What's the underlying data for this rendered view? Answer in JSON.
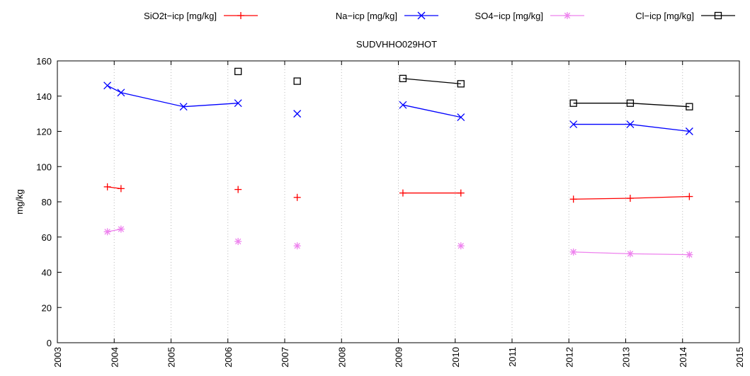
{
  "chart_data": {
    "type": "line",
    "title": "SUDVHHO029HOT",
    "xlabel": "",
    "ylabel": "mg/kg",
    "xlim": [
      2003,
      2015
    ],
    "ylim": [
      0,
      160
    ],
    "x_ticks": [
      "2003",
      "2004",
      "2005",
      "2006",
      "2007",
      "2008",
      "2009",
      "2010",
      "2011",
      "2012",
      "2013",
      "2014",
      "2015"
    ],
    "y_ticks": [
      "0",
      "20",
      "40",
      "60",
      "80",
      "100",
      "120",
      "140",
      "160"
    ],
    "grid": "vertical dotted at each year",
    "legend_position": "top",
    "series": [
      {
        "name": "SiO2t−icp [mg/kg]",
        "color": "#ff0000",
        "marker": "plus",
        "segments": [
          [
            [
              2003.88,
              88.5
            ],
            [
              2004.12,
              87.5
            ]
          ],
          [
            [
              2006.18,
              87
            ]
          ],
          [
            [
              2007.22,
              82.5
            ]
          ],
          [
            [
              2009.08,
              85
            ],
            [
              2010.1,
              85
            ]
          ],
          [
            [
              2012.08,
              81.5
            ],
            [
              2013.08,
              82
            ],
            [
              2014.12,
              83
            ]
          ]
        ]
      },
      {
        "name": "Na−icp [mg/kg]",
        "color": "#0000ff",
        "marker": "x",
        "segments": [
          [
            [
              2003.88,
              146
            ],
            [
              2004.12,
              142
            ],
            [
              2005.22,
              134
            ],
            [
              2006.18,
              136
            ]
          ],
          [
            [
              2007.22,
              130
            ]
          ],
          [
            [
              2009.08,
              135
            ],
            [
              2010.1,
              128
            ]
          ],
          [
            [
              2012.08,
              124
            ],
            [
              2013.08,
              124
            ],
            [
              2014.12,
              120
            ]
          ]
        ]
      },
      {
        "name": "SO4−icp [mg/kg]",
        "color": "#ee82ee",
        "marker": "star",
        "segments": [
          [
            [
              2003.88,
              63
            ],
            [
              2004.12,
              64.5
            ]
          ],
          [
            [
              2006.18,
              57.5
            ]
          ],
          [
            [
              2007.22,
              55
            ]
          ],
          [
            [
              2010.1,
              55
            ]
          ],
          [
            [
              2012.08,
              51.5
            ],
            [
              2013.08,
              50.5
            ],
            [
              2014.12,
              50
            ]
          ]
        ]
      },
      {
        "name": "Cl−icp [mg/kg]",
        "color": "#000000",
        "marker": "square",
        "segments": [
          [
            [
              2006.18,
              154
            ]
          ],
          [
            [
              2007.22,
              148.5
            ]
          ],
          [
            [
              2009.08,
              150
            ],
            [
              2010.1,
              147
            ]
          ],
          [
            [
              2012.08,
              136
            ],
            [
              2013.08,
              136
            ],
            [
              2014.12,
              134
            ]
          ]
        ]
      }
    ]
  }
}
